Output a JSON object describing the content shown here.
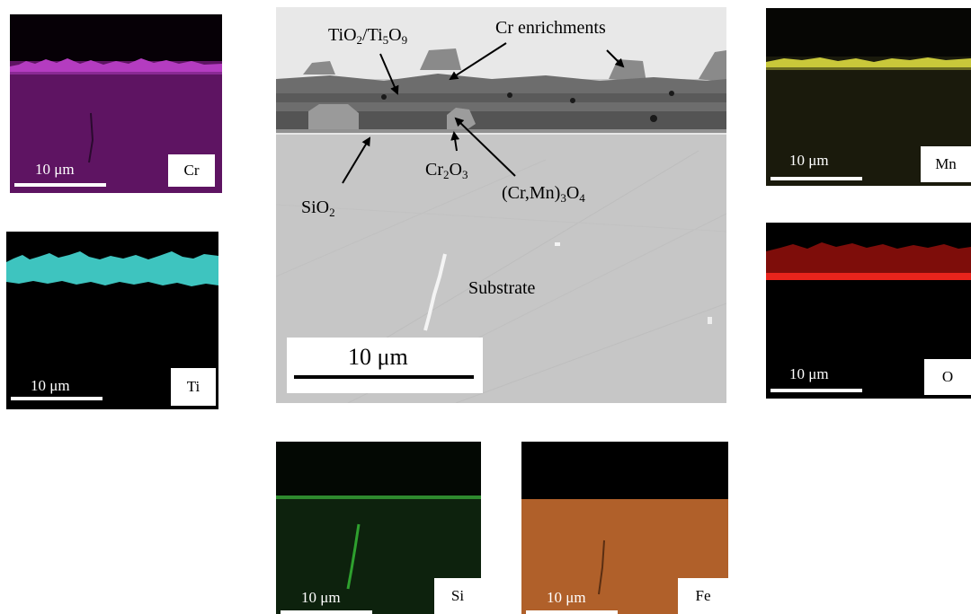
{
  "figure": {
    "main": {
      "scale_bar": "10 μm",
      "labels": {
        "tio2": {
          "a": "TiO",
          "a_sub": "2",
          "b": "/Ti",
          "b_sub": "5",
          "c": "O",
          "c_sub": "9"
        },
        "cr_enrichments": "Cr enrichments",
        "sio2": {
          "a": "SiO",
          "a_sub": "2"
        },
        "cr2o3": {
          "a": "Cr",
          "a_sub": "2",
          "b": "O",
          "b_sub": "3"
        },
        "crmn": {
          "a": "(Cr,Mn)",
          "a_sub": "3",
          "b": "O",
          "b_sub": "4"
        },
        "substrate": "Substrate"
      }
    },
    "maps": [
      {
        "element": "Cr",
        "scale_bar": "10 μm",
        "color": "#7a1a80"
      },
      {
        "element": "Ti",
        "scale_bar": "10 μm",
        "color": "#3fc6c0"
      },
      {
        "element": "Mn",
        "scale_bar": "10 μm",
        "color": "#c8c83a"
      },
      {
        "element": "O",
        "scale_bar": "10 μm",
        "color": "#e8241c"
      },
      {
        "element": "Si",
        "scale_bar": "10 μm",
        "color": "#1e5a1e"
      },
      {
        "element": "Fe",
        "scale_bar": "10 μm",
        "color": "#b8622a"
      }
    ]
  }
}
